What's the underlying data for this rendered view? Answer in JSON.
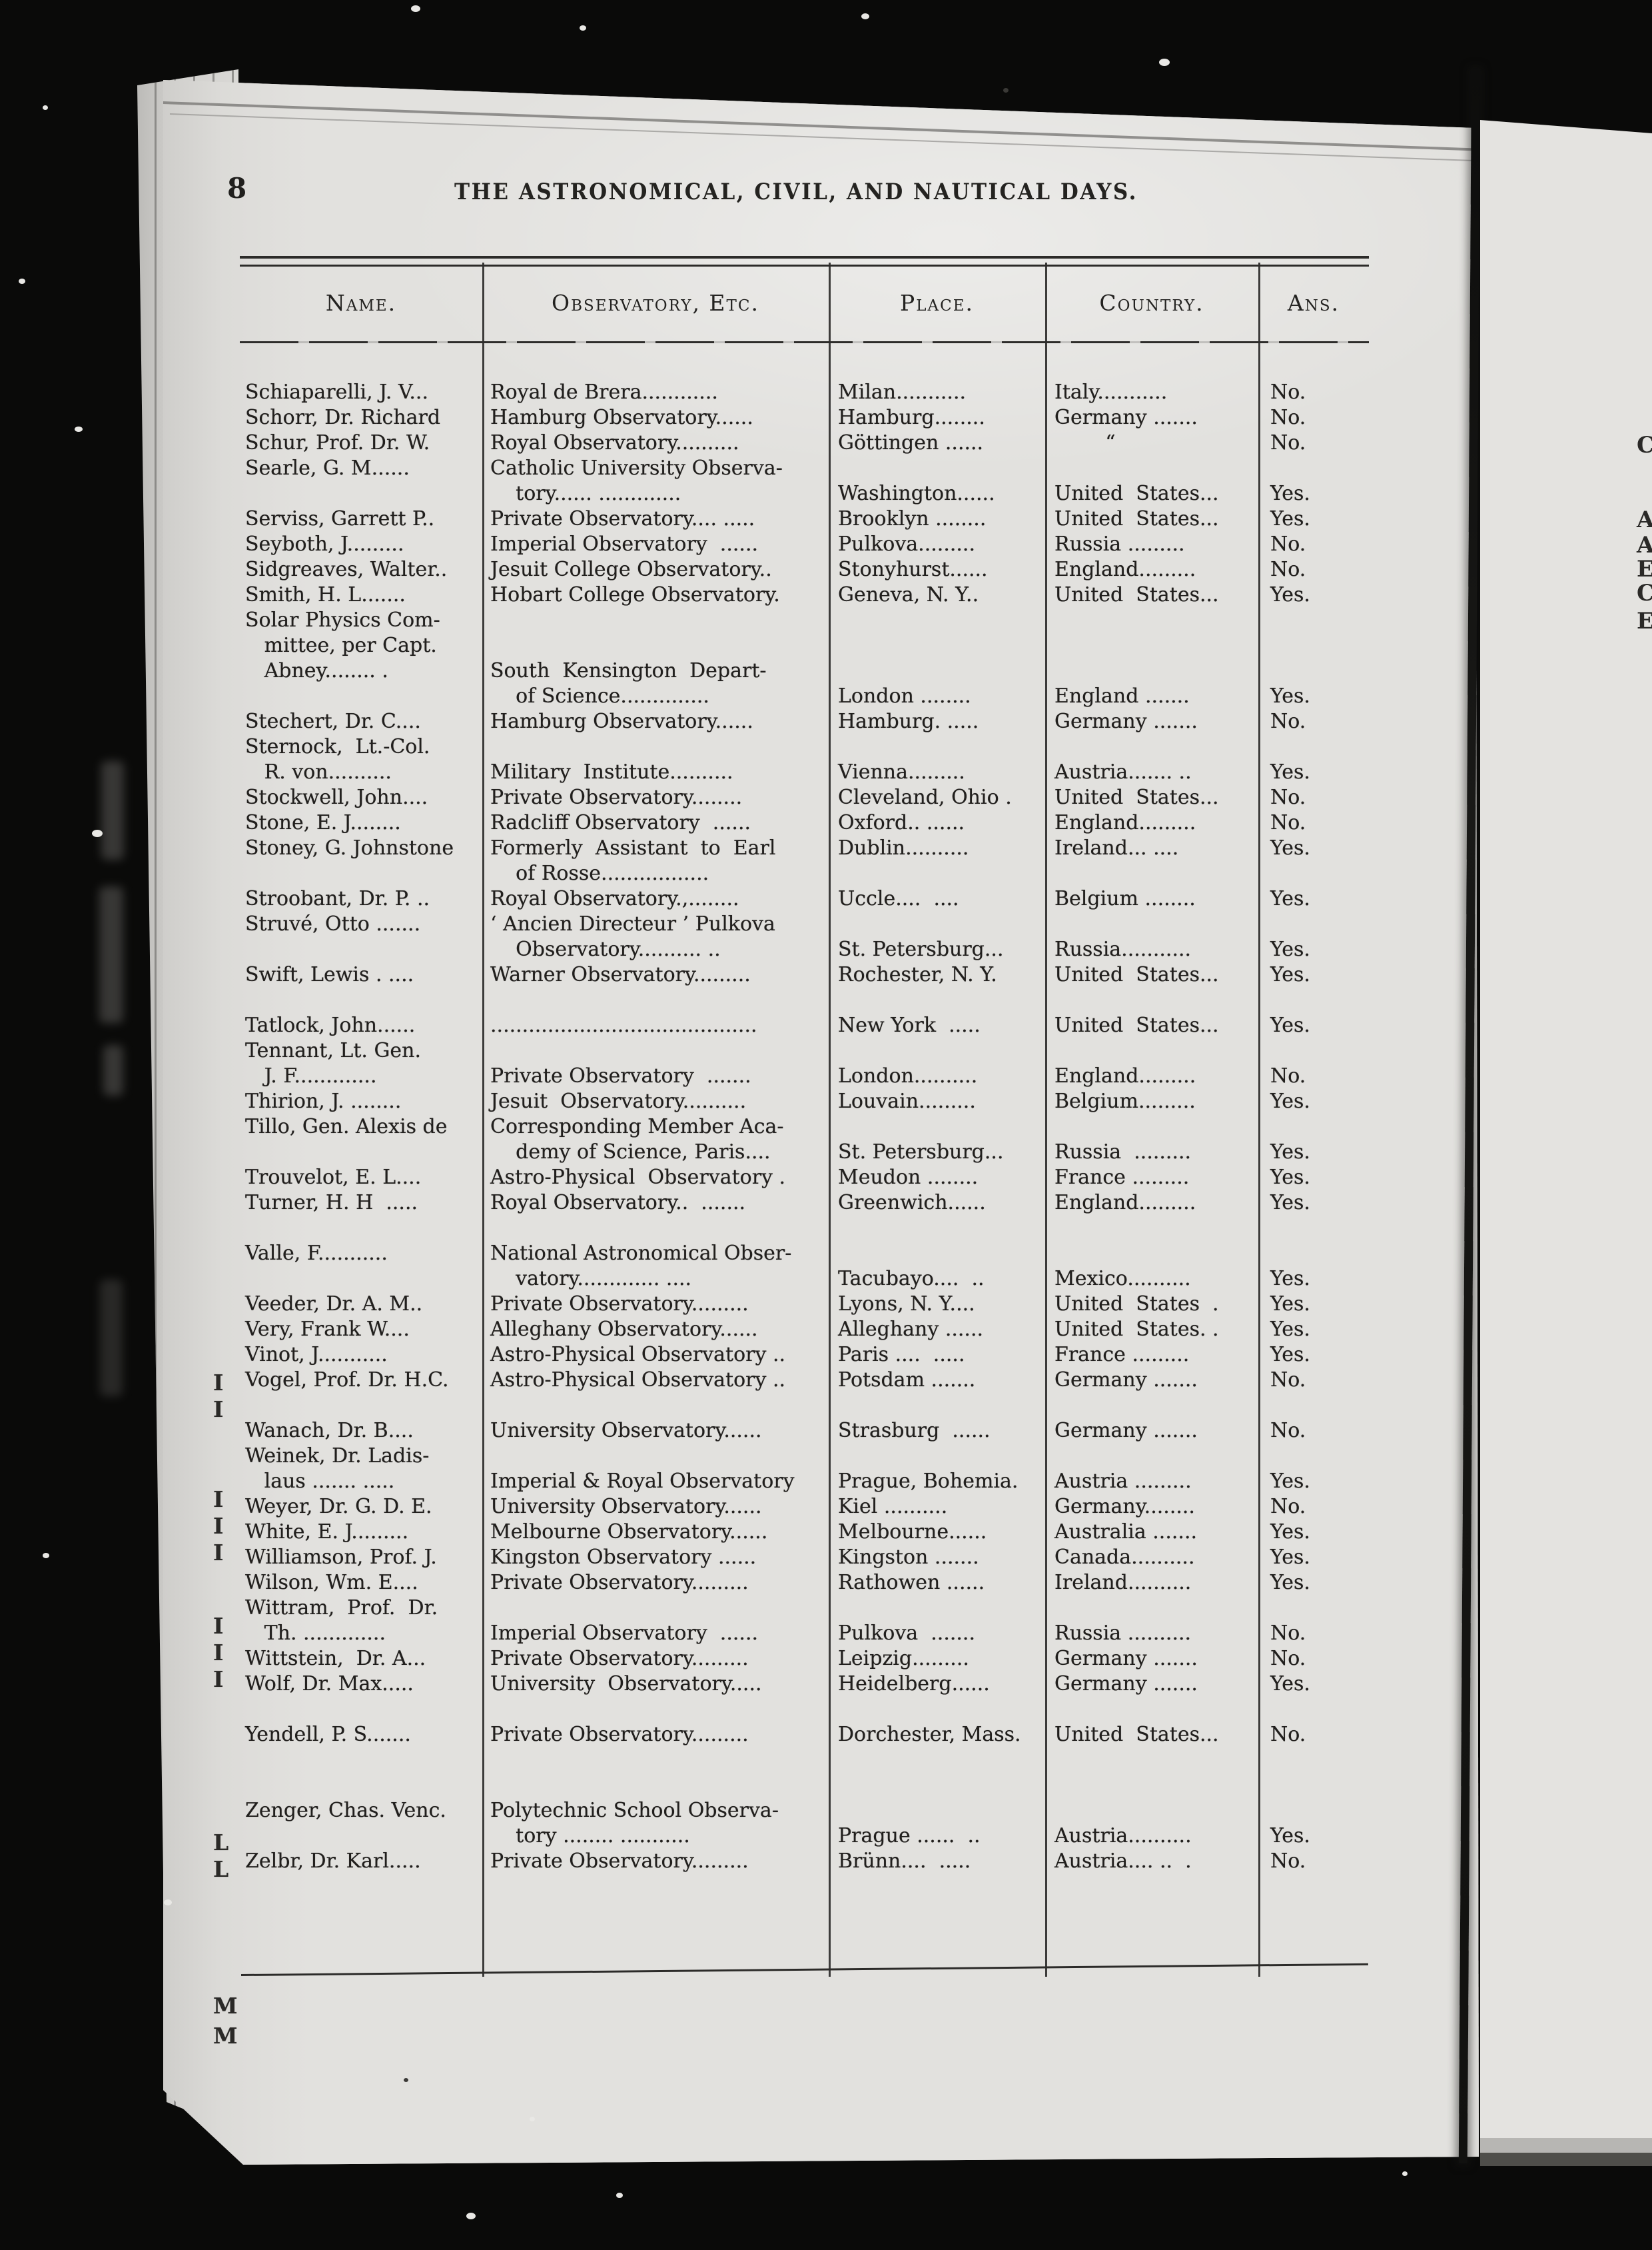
{
  "page": {
    "number": "8",
    "title": "THE ASTRONOMICAL, CIVIL, AND NAUTICAL DAYS."
  },
  "table": {
    "headers": [
      "Name.",
      "Observatory, Etc.",
      "Place.",
      "Country.",
      "Ans."
    ],
    "rows": [
      [
        "Schiaparelli, J. V...",
        "Royal de Brera............",
        "Milan...........",
        "Italy...........",
        "No."
      ],
      [
        "Schorr, Dr. Richard",
        "Hamburg Observatory......",
        "Hamburg........",
        "Germany .......",
        "No."
      ],
      [
        "Schur, Prof. Dr. W.",
        "Royal Observatory..........",
        "Göttingen ......",
        "        “",
        "No."
      ],
      [
        "Searle, G. M......",
        "Catholic University Observa-",
        "",
        "",
        ""
      ],
      [
        "",
        "    tory...... .............",
        "Washington......",
        "United  States...",
        "Yes."
      ],
      [
        "Serviss, Garrett P..",
        "Private Observatory.... .....",
        "Brooklyn ........",
        "United  States...",
        "Yes."
      ],
      [
        "Seyboth, J.........",
        "Imperial Observatory  ......",
        "Pulkova.........",
        "Russia .........",
        "No."
      ],
      [
        "Sidgreaves, Walter..",
        "Jesuit College Observatory..",
        "Stonyhurst......",
        "England.........",
        "No."
      ],
      [
        "Smith, H. L.......",
        "Hobart College Observatory.",
        "Geneva, N. Y..",
        "United  States...",
        "Yes."
      ],
      [
        "Solar Physics Com-",
        "",
        "",
        "",
        ""
      ],
      [
        "   mittee, per Capt.",
        "",
        "",
        "",
        ""
      ],
      [
        "   Abney........ .",
        "South  Kensington  Depart-",
        "",
        "",
        ""
      ],
      [
        "",
        "    of Science..............",
        "London ........",
        "England .......",
        "Yes."
      ],
      [
        "Stechert, Dr. C....",
        "Hamburg Observatory......",
        "Hamburg. .....",
        "Germany .......",
        "No."
      ],
      [
        "Sternock,  Lt.-Col.",
        "",
        "",
        "",
        ""
      ],
      [
        "   R. von..........",
        "Military  Institute..........",
        "Vienna.........",
        "Austria....... ..",
        "Yes."
      ],
      [
        "Stockwell, John....",
        "Private Observatory........",
        "Cleveland, Ohio .",
        "United  States...",
        "No."
      ],
      [
        "Stone, E. J........",
        "Radcliff Observatory  ......",
        "Oxford.. ......",
        "England.........",
        "No."
      ],
      [
        "Stoney, G. Johnstone",
        "Formerly  Assistant  to  Earl",
        "Dublin..........",
        "Ireland... ....",
        "Yes."
      ],
      [
        "",
        "    of Rosse.................",
        "",
        "",
        ""
      ],
      [
        "Stroobant, Dr. P. ..",
        "Royal Observatory.,........",
        "Uccle....  ....",
        "Belgium ........",
        "Yes."
      ],
      [
        "Struvé, Otto .......",
        "‘ Ancien Directeur ’ Pulkova",
        "",
        "",
        ""
      ],
      [
        "",
        "    Observatory.......... ..",
        "St. Petersburg...",
        "Russia...........",
        "Yes."
      ],
      [
        "Swift, Lewis . ....",
        "Warner Observatory.........",
        "Rochester, N. Y.",
        "United  States...",
        "Yes."
      ],
      [
        "",
        "",
        "",
        "",
        ""
      ],
      [
        "Tatlock, John......",
        "..........................................",
        "New York  .....",
        "United  States...",
        "Yes."
      ],
      [
        "Tennant, Lt. Gen.",
        "",
        "",
        "",
        ""
      ],
      [
        "   J. F.............",
        "Private Observatory  .......",
        "London..........",
        "England.........",
        "No."
      ],
      [
        "Thirion, J. ........",
        "Jesuit  Observatory..........",
        "Louvain.........",
        "Belgium.........",
        "Yes."
      ],
      [
        "Tillo, Gen. Alexis de",
        "Corresponding Member Aca-",
        "",
        "",
        ""
      ],
      [
        "",
        "    demy of Science, Paris....",
        "St. Petersburg...",
        "Russia  .........",
        "Yes."
      ],
      [
        "Trouvelot, E. L....",
        "Astro-Physical  Observatory .",
        "Meudon ........",
        "France .........",
        "Yes."
      ],
      [
        "Turner, H. H  .....",
        "Royal Observatory..  .......",
        "Greenwich......",
        "England.........",
        "Yes."
      ],
      [
        "",
        "",
        "",
        "",
        ""
      ],
      [
        "Valle, F...........",
        "National Astronomical Obser-",
        "",
        "",
        ""
      ],
      [
        "",
        "    vatory............. ....",
        "Tacubayo....  ..",
        "Mexico..........",
        "Yes."
      ],
      [
        "Veeder, Dr. A. M..",
        "Private Observatory.........",
        "Lyons, N. Y....",
        "United  States  .",
        "Yes."
      ],
      [
        "Very, Frank W....",
        "Alleghany Observatory......",
        "Alleghany ......",
        "United  States. .",
        "Yes."
      ],
      [
        "Vinot, J...........",
        "Astro-Physical Observatory ..",
        "Paris ....  .....",
        "France .........",
        "Yes."
      ],
      [
        "Vogel, Prof. Dr. H.C.",
        "Astro-Physical Observatory ..",
        "Potsdam .......",
        "Germany .......",
        "No."
      ],
      [
        "",
        "",
        "",
        "",
        ""
      ],
      [
        "Wanach, Dr. B....",
        "University Observatory......",
        "Strasburg  ......",
        "Germany .......",
        "No."
      ],
      [
        "Weinek, Dr. Ladis-",
        "",
        "",
        "",
        ""
      ],
      [
        "   laus ....... .....",
        "Imperial & Royal Observatory",
        "Prague, Bohemia.",
        "Austria .........",
        "Yes."
      ],
      [
        "Weyer, Dr. G. D. E.",
        "University Observatory......",
        "Kiel ..........",
        "Germany........",
        "No."
      ],
      [
        "White, E. J.........",
        "Melbourne Observatory......",
        "Melbourne......",
        "Australia .......",
        "Yes."
      ],
      [
        "Williamson, Prof. J.",
        "Kingston Observatory ......",
        "Kingston .......",
        "Canada..........",
        "Yes."
      ],
      [
        "Wilson, Wm. E....",
        "Private Observatory.........",
        "Rathowen ......",
        "Ireland..........",
        "Yes."
      ],
      [
        "Wittram,  Prof.  Dr.",
        "",
        "",
        "",
        ""
      ],
      [
        "   Th. .............",
        "Imperial Observatory  ......",
        "Pulkova  .......",
        "Russia ..........",
        "No."
      ],
      [
        "Wittstein,  Dr. A...",
        "Private Observatory.........",
        "Leipzig.........",
        "Germany .......",
        "No."
      ],
      [
        "Wolf, Dr. Max.....",
        "University  Observatory.....",
        "Heidelberg......",
        "Germany .......",
        "Yes."
      ],
      [
        "",
        "",
        "",
        "",
        ""
      ],
      [
        "Yendell, P. S.......",
        "Private Observatory.........",
        "Dorchester, Mass.",
        "United  States...",
        "No."
      ],
      [
        "",
        "",
        "",
        "",
        ""
      ],
      [
        "",
        "",
        "",
        "",
        ""
      ],
      [
        "Zenger, Chas. Venc.",
        "Polytechnic School Observa-",
        "",
        "",
        ""
      ],
      [
        "",
        "    tory ........ ...........",
        "Prague ......  ..",
        "Austria..........",
        "Yes."
      ],
      [
        "Zelbr, Dr. Karl.....",
        "Private Observatory.........",
        "Brünn....  .....",
        "Austria.... ..  .",
        "No."
      ]
    ]
  },
  "edge_fragments": {
    "left_letters": [
      "I",
      "I",
      "I",
      "I",
      "I",
      "I",
      "I",
      "I",
      "L",
      "L",
      "M",
      "M"
    ],
    "right_letters": [
      "C",
      "A",
      "A",
      "E",
      "C",
      "E"
    ]
  },
  "colors": {
    "paper": "#e1e0dd",
    "ink": "#211f1d",
    "background": "#0a0a09"
  }
}
